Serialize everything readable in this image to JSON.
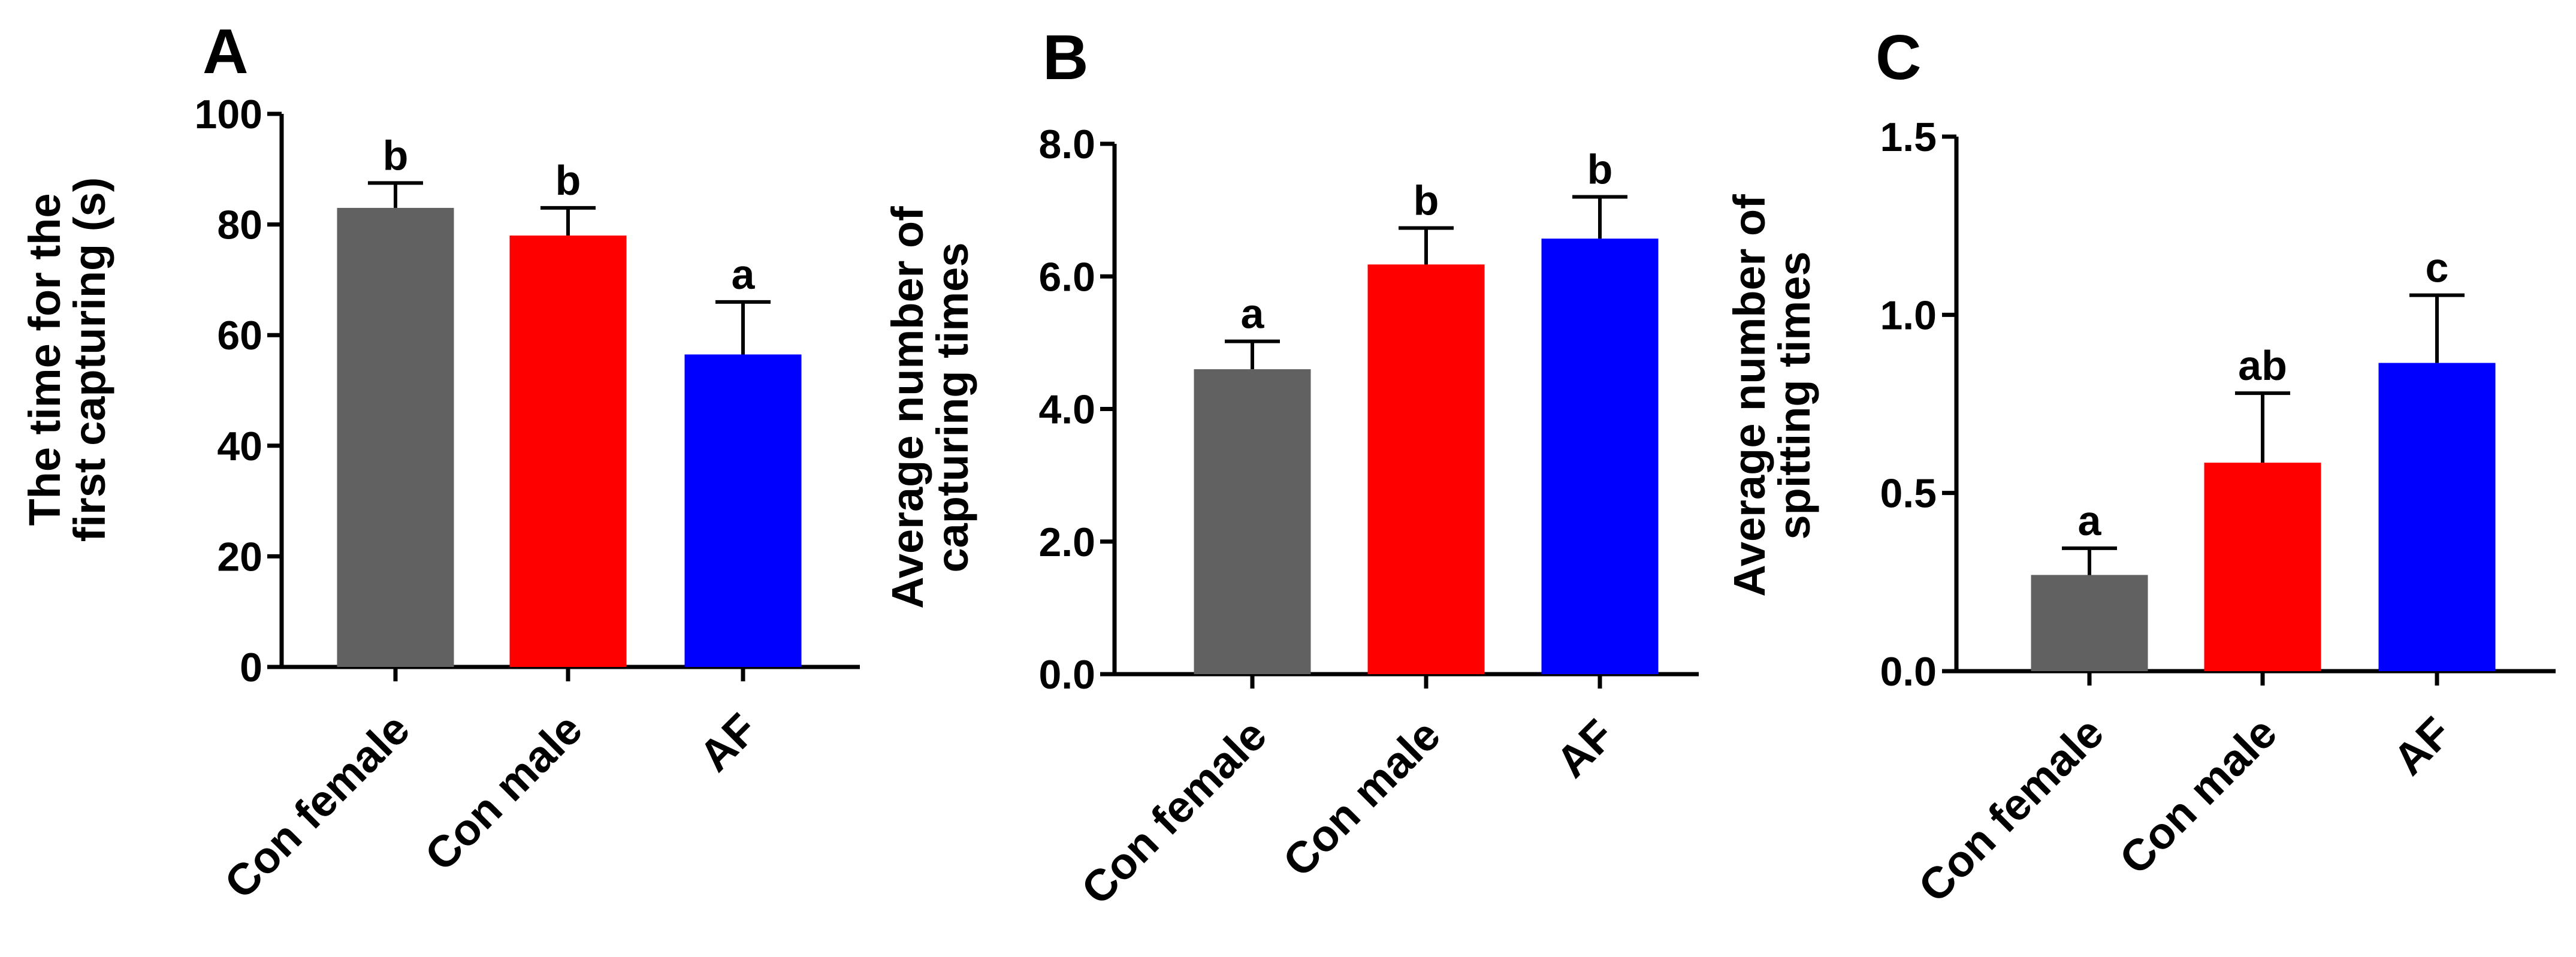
{
  "chart_data": [
    {
      "type": "bar",
      "panel_label": "A",
      "categories": [
        "Con female",
        "Con male",
        "AF"
      ],
      "values": [
        83,
        78,
        56.5
      ],
      "errors": [
        4.5,
        5,
        9.5
      ],
      "significance": [
        "b",
        "b",
        "a"
      ],
      "colors": [
        "#616161",
        "#ff0000",
        "#0000ff"
      ],
      "ylabel_lines": [
        "The time for the",
        "first capturing (s)"
      ],
      "xlabel": "",
      "ylim": [
        0,
        100
      ],
      "yticks": [
        0,
        20,
        40,
        60,
        80,
        100
      ],
      "ytick_labels": [
        "0",
        "20",
        "40",
        "60",
        "80",
        "100"
      ],
      "grid": false,
      "legend": "none"
    },
    {
      "type": "bar",
      "panel_label": "B",
      "categories": [
        "Con female",
        "Con male",
        "AF"
      ],
      "values": [
        4.6,
        6.18,
        6.57
      ],
      "errors": [
        0.42,
        0.55,
        0.63
      ],
      "significance": [
        "a",
        "b",
        "b"
      ],
      "colors": [
        "#616161",
        "#ff0000",
        "#0000ff"
      ],
      "ylabel_lines": [
        "Average number of",
        "capturing times"
      ],
      "xlabel": "",
      "ylim": [
        0,
        8
      ],
      "yticks": [
        0,
        2,
        4,
        6,
        8
      ],
      "ytick_labels": [
        "0.0",
        "2.0",
        "4.0",
        "6.0",
        "8.0"
      ],
      "grid": false,
      "legend": "none"
    },
    {
      "type": "bar",
      "panel_label": "C",
      "categories": [
        "Con female",
        "Con male",
        "AF"
      ],
      "values": [
        0.27,
        0.585,
        0.865
      ],
      "errors": [
        0.075,
        0.195,
        0.19
      ],
      "significance": [
        "a",
        "ab",
        "c"
      ],
      "colors": [
        "#616161",
        "#ff0000",
        "#0000ff"
      ],
      "ylabel_lines": [
        "Average number of",
        "spitting times"
      ],
      "xlabel": "",
      "ylim": [
        0,
        1.5
      ],
      "yticks": [
        0,
        0.5,
        1.0,
        1.5
      ],
      "ytick_labels": [
        "0.0",
        "0.5",
        "1.0",
        "1.5"
      ],
      "grid": false,
      "legend": "none"
    }
  ]
}
